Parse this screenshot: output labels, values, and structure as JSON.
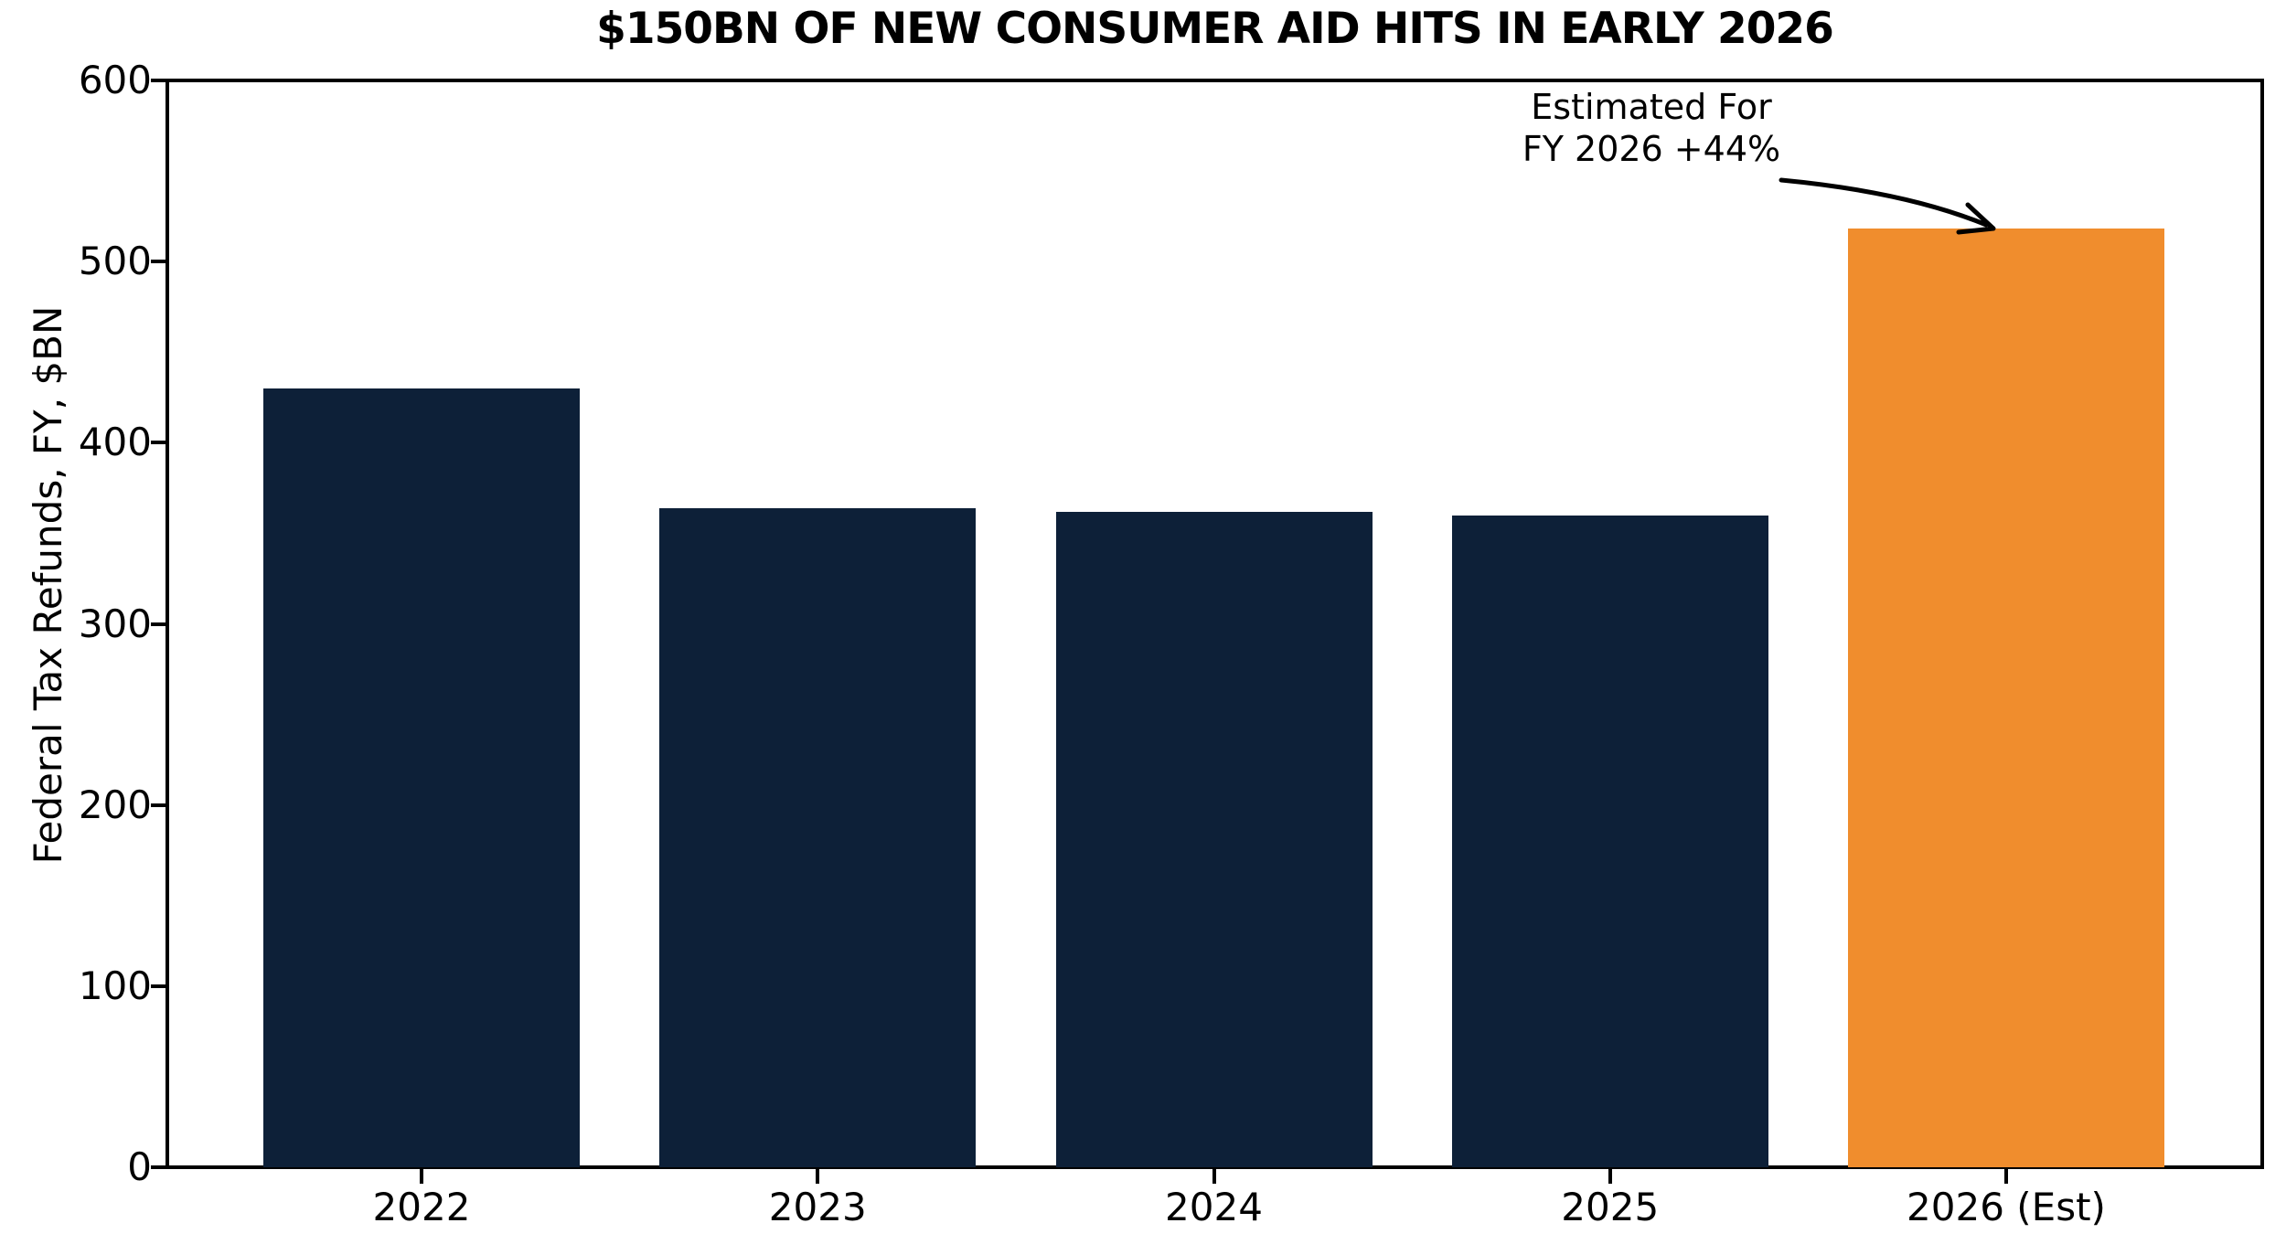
{
  "figure": {
    "background": "#ffffff"
  },
  "chart_data": {
    "type": "bar",
    "title": "$150BN OF NEW CONSUMER AID HITS IN EARLY 2026",
    "ylabel": "Federal Tax Refunds, FY, $BN",
    "xlabel": "",
    "categories": [
      "2022",
      "2023",
      "2024",
      "2025",
      "2026 (Est)"
    ],
    "values": [
      430,
      364,
      362,
      360,
      518
    ],
    "bar_colors": [
      "#0D2038",
      "#0D2038",
      "#0D2038",
      "#0D2038",
      "#F08D2D"
    ],
    "ylim": [
      0,
      600
    ],
    "yticks": [
      0,
      100,
      200,
      300,
      400,
      500,
      600
    ],
    "grid": false,
    "legend": "none",
    "annotation": {
      "line1": "Estimated For",
      "line2": "FY 2026 +44%",
      "target_category": "2026 (Est)"
    }
  },
  "colors": {
    "navy": "#0D2038",
    "orange": "#F08D2D",
    "axis": "#000000",
    "text": "#000000"
  }
}
